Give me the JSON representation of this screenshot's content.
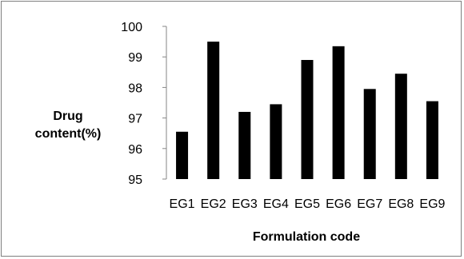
{
  "chart_data": {
    "type": "bar",
    "title": "",
    "xlabel": "Formulation code",
    "ylabel_lines": [
      "Drug",
      "content(%)"
    ],
    "categories": [
      "EG1",
      "EG2",
      "EG3",
      "EG4",
      "EG5",
      "EG6",
      "EG7",
      "EG8",
      "EG9"
    ],
    "values": [
      96.55,
      99.5,
      97.2,
      97.45,
      98.9,
      99.35,
      97.95,
      98.45,
      97.55
    ],
    "ylim": [
      95,
      100
    ],
    "yticks": [
      95,
      96,
      97,
      98,
      99,
      100
    ],
    "grid": false,
    "legend": "none",
    "bar_color": "#000000"
  }
}
